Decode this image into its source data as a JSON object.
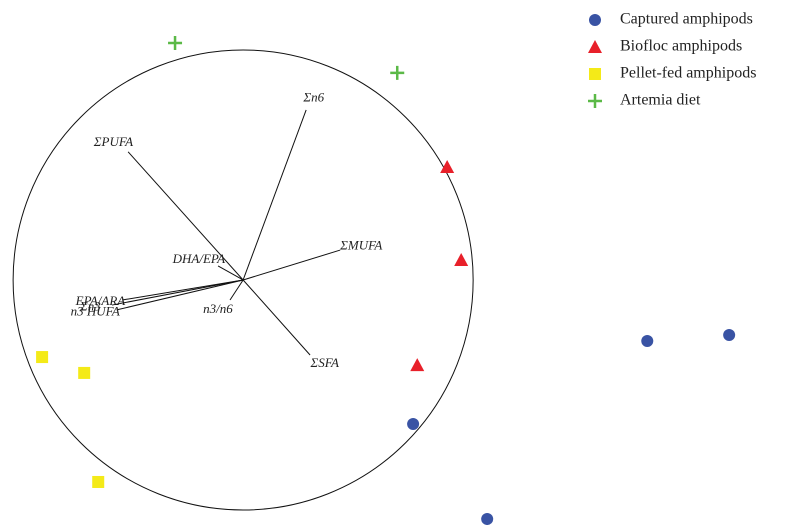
{
  "chart_data": {
    "type": "biplot",
    "xlim": [
      -1.057,
      2.421
    ],
    "ylim": [
      -1.065,
      1.217
    ],
    "circle_radius": 1,
    "legend": "top-right",
    "series": [
      {
        "name": "Captured amphipods",
        "color": "#3953a4",
        "marker": "circle",
        "x": [
          1.757,
          2.113,
          0.739,
          1.061
        ],
        "y": [
          -0.265,
          -0.239,
          -0.626,
          -1.039
        ]
      },
      {
        "name": "Biofloc amphipods",
        "color": "#e8202a",
        "marker": "triangle",
        "x": [
          0.887,
          0.948,
          0.757
        ],
        "y": [
          0.491,
          0.087,
          -0.37
        ]
      },
      {
        "name": "Pellet-fed amphipods",
        "color": "#f4ea18",
        "marker": "square",
        "x": [
          -0.874,
          -0.691,
          -0.63
        ],
        "y": [
          -0.335,
          -0.404,
          -0.878
        ]
      },
      {
        "name": "Artemia diet",
        "color": "#5bb947",
        "marker": "plus",
        "x": [
          -0.296,
          0.67
        ],
        "y": [
          1.03,
          0.9
        ]
      }
    ],
    "vectors": [
      {
        "label": "ΣPUFA",
        "x": -0.5,
        "y": 0.557
      },
      {
        "label": "Σn6",
        "x": 0.274,
        "y": 0.739
      },
      {
        "label": "ΣMUFA",
        "x": 0.422,
        "y": 0.13
      },
      {
        "label": "ΣSFA",
        "x": 0.291,
        "y": -0.326
      },
      {
        "label": "DHA/EPA",
        "x": -0.109,
        "y": 0.061
      },
      {
        "label": "EPA/ARA",
        "x": -0.526,
        "y": -0.087
      },
      {
        "label": "Σn3",
        "x": -0.57,
        "y": -0.109
      },
      {
        "label": "n3 HUFA",
        "x": -0.55,
        "y": -0.13
      },
      {
        "label": "n3/n6",
        "x": -0.057,
        "y": -0.087
      }
    ]
  }
}
